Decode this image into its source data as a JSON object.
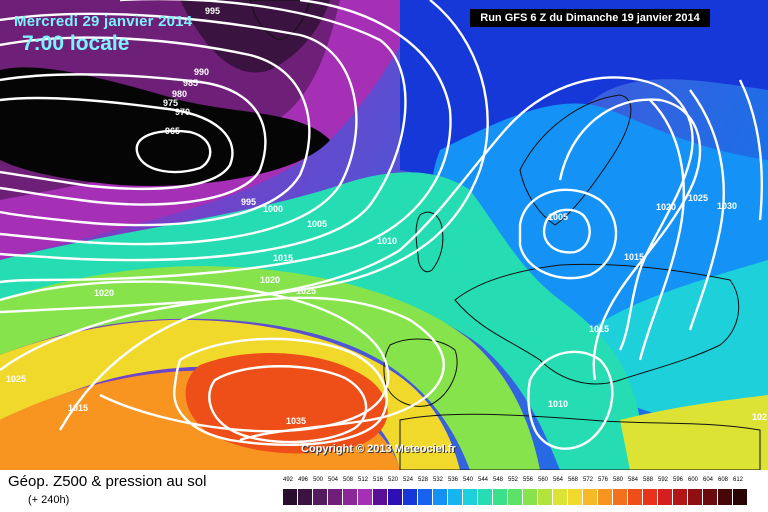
{
  "header": {
    "date": "Mercredi 29 janvier 2014",
    "time": "7:00 locale",
    "run": "Run GFS 6 Z du Dimanche 19 janvier 2014"
  },
  "footer": {
    "title": "Géop. Z500 & pression au sol",
    "subtitle": "(+ 240h)",
    "copyright": "Copyright © 2013 Meteociel.fr"
  },
  "isobar_labels": [
    "995",
    "990",
    "985",
    "980",
    "975",
    "970",
    "965",
    "995",
    "1000",
    "1005",
    "1010",
    "1015",
    "1020",
    "1025",
    "1025",
    "1015",
    "1020",
    "1035",
    "1005",
    "1015",
    "1015",
    "1010",
    "1020",
    "1025",
    "1030",
    "102"
  ],
  "scale": {
    "ticks": [
      "492",
      "496",
      "500",
      "504",
      "508",
      "512",
      "516",
      "520",
      "524",
      "528",
      "532",
      "536",
      "540",
      "544",
      "548",
      "552",
      "556",
      "560",
      "564",
      "568",
      "572",
      "576",
      "580",
      "584",
      "588",
      "592",
      "596",
      "600",
      "604",
      "608",
      "612"
    ],
    "colors": [
      "#2a0d2e",
      "#3b1340",
      "#561a5e",
      "#6e1f78",
      "#8b2898",
      "#a52fb5",
      "#5b0f96",
      "#2c10b4",
      "#1738d8",
      "#1464ef",
      "#1592f5",
      "#16b5ef",
      "#1ed0da",
      "#26dcb3",
      "#3be08a",
      "#5ce267",
      "#86e34b",
      "#b3e43b",
      "#dce335",
      "#f1d92c",
      "#f7b827",
      "#f79520",
      "#f4711b",
      "#ee4f19",
      "#e8321c",
      "#d51f1f",
      "#b31619",
      "#8e1013",
      "#6a0b0e",
      "#470709",
      "#2a0404"
    ]
  }
}
